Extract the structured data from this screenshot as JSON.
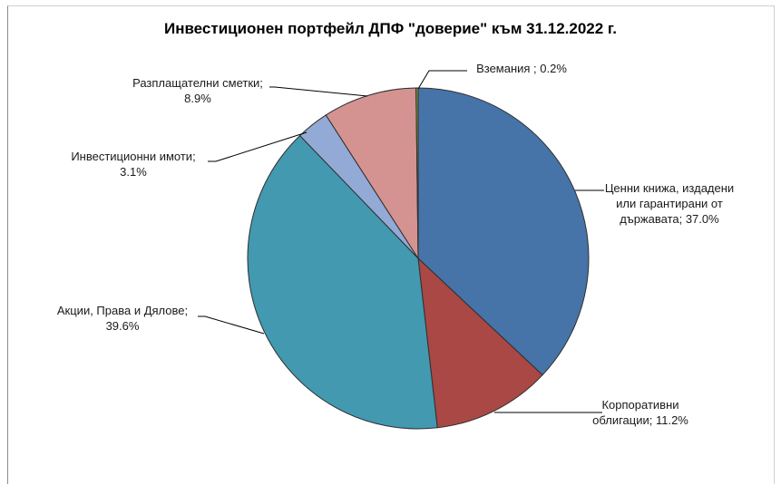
{
  "chart_data": {
    "type": "pie",
    "title": "Инвестиционен портфейл ДПФ \"доверие\" към 31.12.2022 г.",
    "slices": [
      {
        "label_lines": [
          "Ценни книжа, издадени",
          "или гарантирани от",
          "държавата; 37.0%"
        ],
        "value": 37.0,
        "color": "#4673a8"
      },
      {
        "label_lines": [
          "Корпоративни",
          "облигации; 11.2%"
        ],
        "value": 11.2,
        "color": "#a94845"
      },
      {
        "label_lines": [
          "Акции, Права и Дялове;",
          "39.6%"
        ],
        "value": 39.6,
        "color": "#4299b0"
      },
      {
        "label_lines": [
          "Инвестиционни имоти;",
          "3.1%"
        ],
        "value": 3.1,
        "color": "#93a9d6"
      },
      {
        "label_lines": [
          "Разплащателни сметки;",
          "8.9%"
        ],
        "value": 8.9,
        "color": "#d49391"
      },
      {
        "label_lines": [
          "Вземания ; 0.2%"
        ],
        "value": 0.2,
        "color": "#7f9a3e"
      }
    ]
  }
}
